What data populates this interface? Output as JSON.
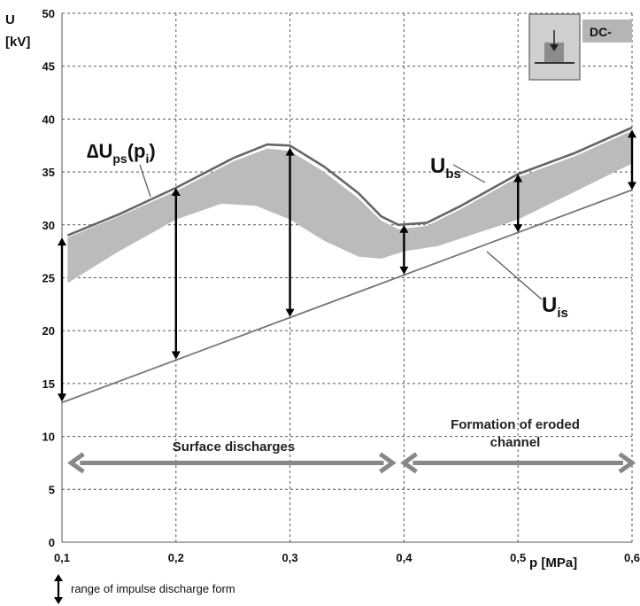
{
  "chart_data": {
    "type": "line",
    "xlabel": "p [MPa]",
    "ylabel_line1": "U",
    "ylabel_line2": "[kV]",
    "xlim": [
      0.1,
      0.6
    ],
    "ylim": [
      0,
      50
    ],
    "x_ticks": [
      0.1,
      0.2,
      0.3,
      0.4,
      0.5,
      0.6
    ],
    "x_tick_labels": [
      "0,1",
      "0,2",
      "0,3",
      "0,4",
      "0,5",
      "0,6"
    ],
    "y_ticks": [
      0,
      5,
      10,
      15,
      20,
      25,
      30,
      35,
      40,
      45,
      50
    ],
    "y_tick_labels": [
      "0",
      "5",
      "10",
      "15",
      "20",
      "25",
      "30",
      "35",
      "40",
      "45",
      "50"
    ],
    "grid": true,
    "series": [
      {
        "name": "Ubs",
        "color": "#666666",
        "points": [
          [
            0.105,
            29.0
          ],
          [
            0.15,
            31.0
          ],
          [
            0.2,
            33.5
          ],
          [
            0.25,
            36.3
          ],
          [
            0.28,
            37.6
          ],
          [
            0.3,
            37.5
          ],
          [
            0.33,
            35.5
          ],
          [
            0.36,
            33.0
          ],
          [
            0.38,
            30.8
          ],
          [
            0.395,
            30.0
          ],
          [
            0.42,
            30.2
          ],
          [
            0.45,
            31.8
          ],
          [
            0.5,
            34.8
          ],
          [
            0.55,
            36.8
          ],
          [
            0.6,
            39.2
          ]
        ]
      },
      {
        "name": "Uis",
        "color": "#777777",
        "points": [
          [
            0.1,
            13.2
          ],
          [
            0.6,
            33.3
          ]
        ]
      }
    ],
    "band": {
      "name": "ΔUps(pi)",
      "color": "#bbbbbb",
      "upper": [
        [
          0.105,
          28.8
        ],
        [
          0.15,
          30.8
        ],
        [
          0.2,
          33.2
        ],
        [
          0.25,
          36.0
        ],
        [
          0.28,
          37.2
        ],
        [
          0.3,
          37.0
        ],
        [
          0.33,
          35.0
        ],
        [
          0.36,
          32.5
        ],
        [
          0.38,
          30.4
        ],
        [
          0.395,
          29.6
        ],
        [
          0.42,
          29.9
        ],
        [
          0.45,
          31.5
        ],
        [
          0.5,
          34.5
        ],
        [
          0.55,
          36.5
        ],
        [
          0.6,
          38.9
        ]
      ],
      "lower": [
        [
          0.105,
          24.5
        ],
        [
          0.15,
          27.5
        ],
        [
          0.2,
          30.5
        ],
        [
          0.24,
          32.0
        ],
        [
          0.27,
          31.8
        ],
        [
          0.3,
          30.5
        ],
        [
          0.33,
          28.5
        ],
        [
          0.36,
          27.0
        ],
        [
          0.38,
          26.8
        ],
        [
          0.4,
          27.5
        ],
        [
          0.43,
          28.0
        ],
        [
          0.5,
          30.5
        ],
        [
          0.6,
          35.8
        ]
      ]
    },
    "range_arrows": [
      {
        "x": 0.1,
        "from": 13.3,
        "to": 28.8
      },
      {
        "x": 0.2,
        "from": 17.3,
        "to": 33.5
      },
      {
        "x": 0.3,
        "from": 21.3,
        "to": 37.3
      },
      {
        "x": 0.4,
        "from": 25.3,
        "to": 30.0
      },
      {
        "x": 0.5,
        "from": 29.3,
        "to": 34.8
      },
      {
        "x": 0.6,
        "from": 33.3,
        "to": 39.0
      }
    ],
    "region_arrows": [
      {
        "label": "Surface discharges",
        "x_from": 0.108,
        "x_to": 0.39,
        "y": 7.5
      },
      {
        "label_line1": "Formation of eroded",
        "label_line2": "channel",
        "x_from": 0.4,
        "x_to": 0.6,
        "y": 7.5
      }
    ],
    "annotations": {
      "ubs": "U",
      "ubs_sub": "bs",
      "uis": "U",
      "uis_sub": "is",
      "dups_delta": "∆U",
      "dups_sub": "ps",
      "dups_paren_open": "(p",
      "dups_sub2": "i",
      "dups_paren_close": ")"
    },
    "badge": "DC-",
    "legend_text": "range of impulse discharge form"
  }
}
